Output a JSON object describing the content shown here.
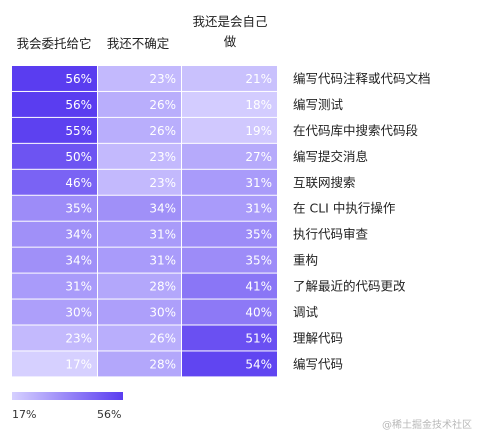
{
  "colors": {
    "low": "#d6d0ff",
    "high": "#5a3df0",
    "text": "#ffffff"
  },
  "chart_data": {
    "type": "heatmap",
    "columns": [
      "我会委托给它",
      "我还不确定",
      "我还是会自己做"
    ],
    "rows": [
      "编写代码注释或代码文档",
      "编写测试",
      "在代码库中搜索代码段",
      "编写提交消息",
      "互联网搜索",
      "在 CLI 中执行操作",
      "执行代码审查",
      "重构",
      "了解最近的代码更改",
      "调试",
      "理解代码",
      "编写代码"
    ],
    "values": [
      [
        56,
        23,
        21
      ],
      [
        56,
        26,
        18
      ],
      [
        55,
        26,
        19
      ],
      [
        50,
        23,
        27
      ],
      [
        46,
        23,
        31
      ],
      [
        35,
        34,
        31
      ],
      [
        34,
        31,
        35
      ],
      [
        34,
        31,
        35
      ],
      [
        31,
        28,
        41
      ],
      [
        30,
        30,
        40
      ],
      [
        23,
        26,
        51
      ],
      [
        17,
        28,
        54
      ]
    ],
    "value_suffix": "%",
    "color_scale": {
      "min": 17,
      "max": 56,
      "min_label": "17%",
      "max_label": "56%"
    }
  },
  "watermark": "@稀土掘金技术社区"
}
